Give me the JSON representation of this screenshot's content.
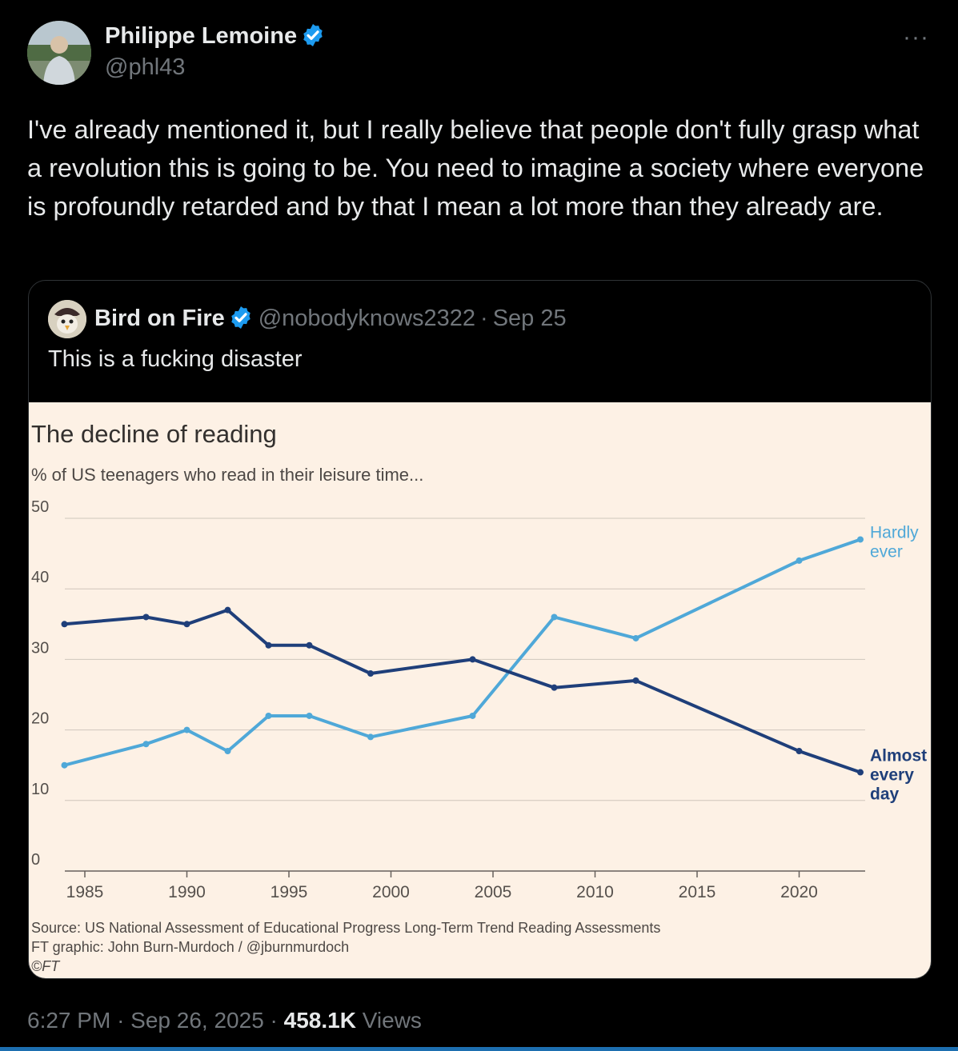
{
  "author": {
    "name": "Philippe Lemoine",
    "handle": "@phl43"
  },
  "more_icon": "···",
  "tweet_text": "I've already mentioned it, but I really believe that people don't fully grasp what a revolution this is going to be. You need to imagine a society where everyone is profoundly retarded and by that I mean a lot more than they already are.",
  "quote": {
    "name": "Bird on Fire",
    "handle": "@nobodyknows2322",
    "separator": "·",
    "date": "Sep 25",
    "text": "This is a fucking disaster"
  },
  "colors": {
    "verified_blue": "#1d9bf0",
    "hardly_ever": "#4fa8d8",
    "almost_every_day": "#1f3f7a",
    "chart_bg": "#fdf1e5"
  },
  "chart_data": {
    "type": "line",
    "title": "The decline of reading",
    "subtitle": "% of US teenagers who read in their leisure time...",
    "ylim": [
      0,
      50
    ],
    "yticks": [
      "0",
      "10",
      "20",
      "30",
      "40",
      "50"
    ],
    "xticks": [
      "1985",
      "1990",
      "1995",
      "2000",
      "2005",
      "2010",
      "2015",
      "2020"
    ],
    "grid": true,
    "series": [
      {
        "name": "Hardly ever",
        "label_lines": [
          "Hardly",
          "ever"
        ],
        "x": [
          1984,
          1988,
          1990,
          1992,
          1994,
          1996,
          1999,
          2004,
          2008,
          2012,
          2020,
          2023
        ],
        "values": [
          15,
          18,
          20,
          17,
          22,
          22,
          19,
          22,
          36,
          33,
          44,
          47
        ]
      },
      {
        "name": "Almost every day",
        "label_lines": [
          "Almost",
          "every",
          "day"
        ],
        "x": [
          1984,
          1988,
          1990,
          1992,
          1994,
          1996,
          1999,
          2004,
          2008,
          2012,
          2020,
          2023
        ],
        "values": [
          35,
          36,
          35,
          37,
          32,
          32,
          28,
          30,
          26,
          27,
          17,
          14
        ]
      }
    ],
    "source_lines": [
      "Source: US National Assessment of Educational Progress Long-Term Trend Reading Assessments",
      "FT graphic: John Burn-Murdoch / @jburnmurdoch",
      "©FT"
    ]
  },
  "footer": {
    "time": "6:27 PM",
    "dot": "·",
    "date": "Sep 26, 2025",
    "views_count": "458.1K",
    "views_label": "Views"
  }
}
